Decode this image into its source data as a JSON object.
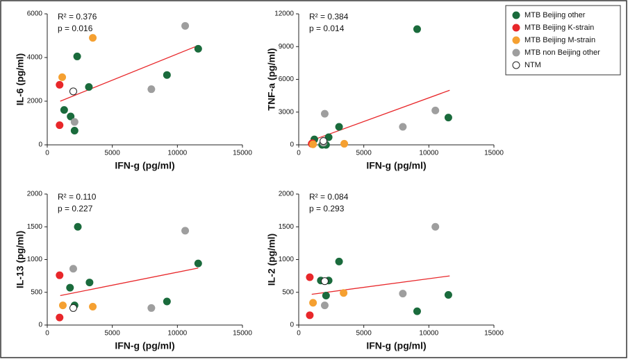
{
  "legend": [
    {
      "name": "MTB Beijing other",
      "color": "#1a6b3c"
    },
    {
      "name": "MTB Beijing K-strain",
      "color": "#e8272a"
    },
    {
      "name": "MTB Beijing M-strain",
      "color": "#f5a031"
    },
    {
      "name": "MTB non Beijing other",
      "color": "#9e9e9e"
    },
    {
      "name": "NTM",
      "color": "#ffffff",
      "hollow": true
    }
  ],
  "chart_data": [
    {
      "type": "scatter",
      "x_label": "IFN-g (pg/ml)",
      "y_label": "IL-6 (pg/ml)",
      "r2_label": "R² = 0.376",
      "p_label": "p = 0.016",
      "xlim": [
        0,
        15000
      ],
      "xticks": [
        0,
        5000,
        10000,
        15000
      ],
      "ylim": [
        0,
        6000
      ],
      "yticks": [
        0,
        2000,
        4000,
        6000
      ],
      "series": [
        {
          "x": [
            1300,
            1800,
            2100,
            2300,
            3200,
            9200,
            11600
          ],
          "values": [
            1600,
            1300,
            650,
            4050,
            2650,
            3200,
            4400
          ]
        },
        {
          "x": [
            950,
            950
          ],
          "values": [
            2750,
            900
          ]
        },
        {
          "x": [
            1150,
            3500
          ],
          "values": [
            3100,
            4900
          ]
        },
        {
          "x": [
            2100,
            8000,
            10600
          ],
          "values": [
            1050,
            2550,
            5450
          ]
        },
        {
          "x": [
            2000
          ],
          "values": [
            2450
          ]
        }
      ],
      "trendline": {
        "color": "#e8272a",
        "x": [
          1000,
          11600
        ],
        "values": [
          2000,
          4550
        ]
      }
    },
    {
      "type": "scatter",
      "x_label": "IFN-g (pg/ml)",
      "y_label": "TNF-a (pg/ml)",
      "r2_label": "R² = 0.384",
      "p_label": "p = 0.014",
      "xlim": [
        0,
        15000
      ],
      "xticks": [
        0,
        5000,
        10000,
        15000
      ],
      "ylim": [
        0,
        12000
      ],
      "yticks": [
        0,
        3000,
        6000,
        9000,
        12000
      ],
      "series": [
        {
          "x": [
            1200,
            1800,
            2100,
            2300,
            3100,
            9100,
            11500
          ],
          "values": [
            500,
            0,
            0,
            700,
            1650,
            10600,
            2500
          ]
        },
        {
          "x": [
            1000,
            1050
          ],
          "values": [
            100,
            150
          ]
        },
        {
          "x": [
            1100,
            3500
          ],
          "values": [
            50,
            100
          ]
        },
        {
          "x": [
            1900,
            2000,
            8000,
            10500
          ],
          "values": [
            200,
            2850,
            1650,
            3150
          ]
        },
        {
          "x": [
            1900
          ],
          "values": [
            350
          ]
        }
      ],
      "trendline": {
        "color": "#e8272a",
        "x": [
          1000,
          11600
        ],
        "values": [
          400,
          5000
        ]
      }
    },
    {
      "type": "scatter",
      "x_label": "IFN-g (pg/ml)",
      "y_label": "IL-13 (pg/ml)",
      "r2_label": "R² = 0.110",
      "p_label": "p = 0.227",
      "xlim": [
        0,
        15000
      ],
      "xticks": [
        0,
        5000,
        10000,
        15000
      ],
      "ylim": [
        0,
        2000
      ],
      "yticks": [
        0,
        500,
        1000,
        1500,
        2000
      ],
      "series": [
        {
          "x": [
            1750,
            2100,
            2350,
            3250,
            9200,
            11600
          ],
          "values": [
            570,
            300,
            1500,
            650,
            360,
            940
          ]
        },
        {
          "x": [
            950,
            950
          ],
          "values": [
            760,
            115
          ]
        },
        {
          "x": [
            1200,
            3500
          ],
          "values": [
            300,
            280
          ]
        },
        {
          "x": [
            2000,
            8000,
            10600
          ],
          "values": [
            860,
            260,
            1440
          ]
        },
        {
          "x": [
            2000
          ],
          "values": [
            260
          ]
        }
      ],
      "trendline": {
        "color": "#e8272a",
        "x": [
          1000,
          11600
        ],
        "values": [
          450,
          870
        ]
      }
    },
    {
      "type": "scatter",
      "x_label": "IFN-g (pg/ml)",
      "y_label": "IL-2 (pg/ml)",
      "r2_label": "R² = 0.084",
      "p_label": "p = 0.293",
      "xlim": [
        0,
        15000
      ],
      "xticks": [
        0,
        5000,
        10000,
        15000
      ],
      "ylim": [
        0,
        2000
      ],
      "yticks": [
        0,
        500,
        1000,
        1500,
        2000
      ],
      "series": [
        {
          "x": [
            1700,
            2100,
            2300,
            3100,
            9100,
            11500
          ],
          "values": [
            680,
            450,
            680,
            970,
            210,
            460
          ]
        },
        {
          "x": [
            850,
            850
          ],
          "values": [
            730,
            150
          ]
        },
        {
          "x": [
            1100,
            3450
          ],
          "values": [
            340,
            490
          ]
        },
        {
          "x": [
            2000,
            8000,
            10500
          ],
          "values": [
            300,
            480,
            1500
          ]
        },
        {
          "x": [
            2000
          ],
          "values": [
            670
          ]
        }
      ],
      "trendline": {
        "color": "#e8272a",
        "x": [
          1000,
          11600
        ],
        "values": [
          470,
          750
        ]
      }
    }
  ]
}
